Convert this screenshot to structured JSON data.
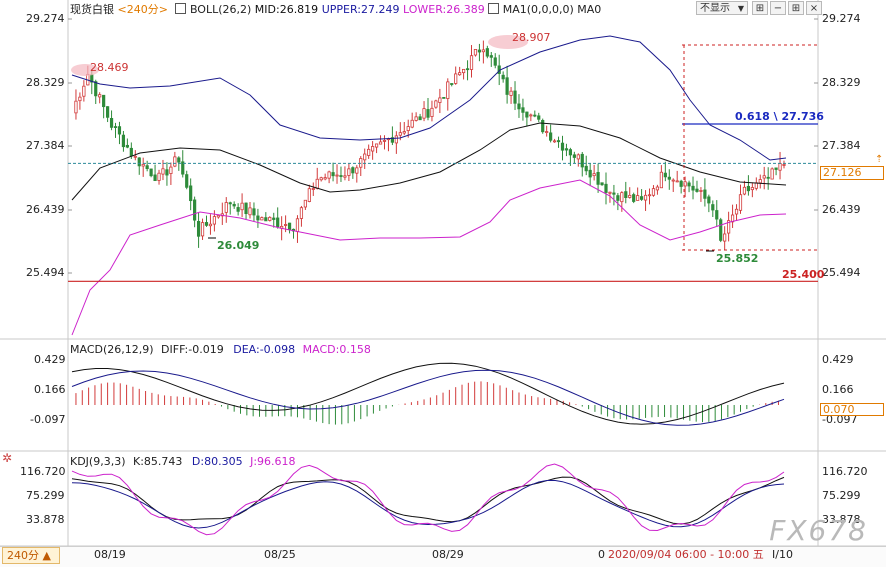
{
  "header": {
    "title": "现货白银",
    "period": "<240分>",
    "boll_label": "BOLL(26,2)",
    "mid": "MID:26.819",
    "upper": "UPPER:27.249",
    "lower": "LOWER:26.389",
    "ma_label": "MA1(0,0,0,0) MA0"
  },
  "controls": {
    "display_select": "不显示",
    "display_select_arrow": "▼"
  },
  "price_axis": [
    "29.274",
    "28.329",
    "27.384",
    "26.439",
    "25.494"
  ],
  "current_price": "27.126",
  "annotations": {
    "high1": "28.469",
    "high2": "28.907",
    "low1": "26.049",
    "low2": "25.852",
    "fib": "0.618 \\ 27.736",
    "support": "25.400"
  },
  "macd": {
    "label": "MACD(26,12,9)",
    "diff": "DIFF:-0.019",
    "dea": "DEA:-0.098",
    "macd": "MACD:0.158",
    "axis": [
      "0.429",
      "0.166",
      "-0.097"
    ],
    "current": "0.070"
  },
  "kdj": {
    "label": "KDJ(9,3,3)",
    "k": "K:85.743",
    "d": "D:80.305",
    "j": "J:96.618",
    "axis": [
      "116.720",
      "75.299",
      "33.878"
    ]
  },
  "time_axis": [
    "08/19",
    "08/25",
    "08/29"
  ],
  "timeframe_button": "240分 ▲",
  "status_time": "2020/09/04 06:00 - 10:00 五",
  "status_prefix": "0",
  "status_suffix": "I/10",
  "watermark": "FX678",
  "colors": {
    "up": "#d23a3a",
    "down": "#2e8b3a",
    "upper_band": "#1a1a8c",
    "mid_band": "#111111",
    "lower_band": "#cc22cc",
    "dea": "#cc22cc",
    "price_line": "#2c8a9a",
    "support_line": "#cc2222"
  }
}
